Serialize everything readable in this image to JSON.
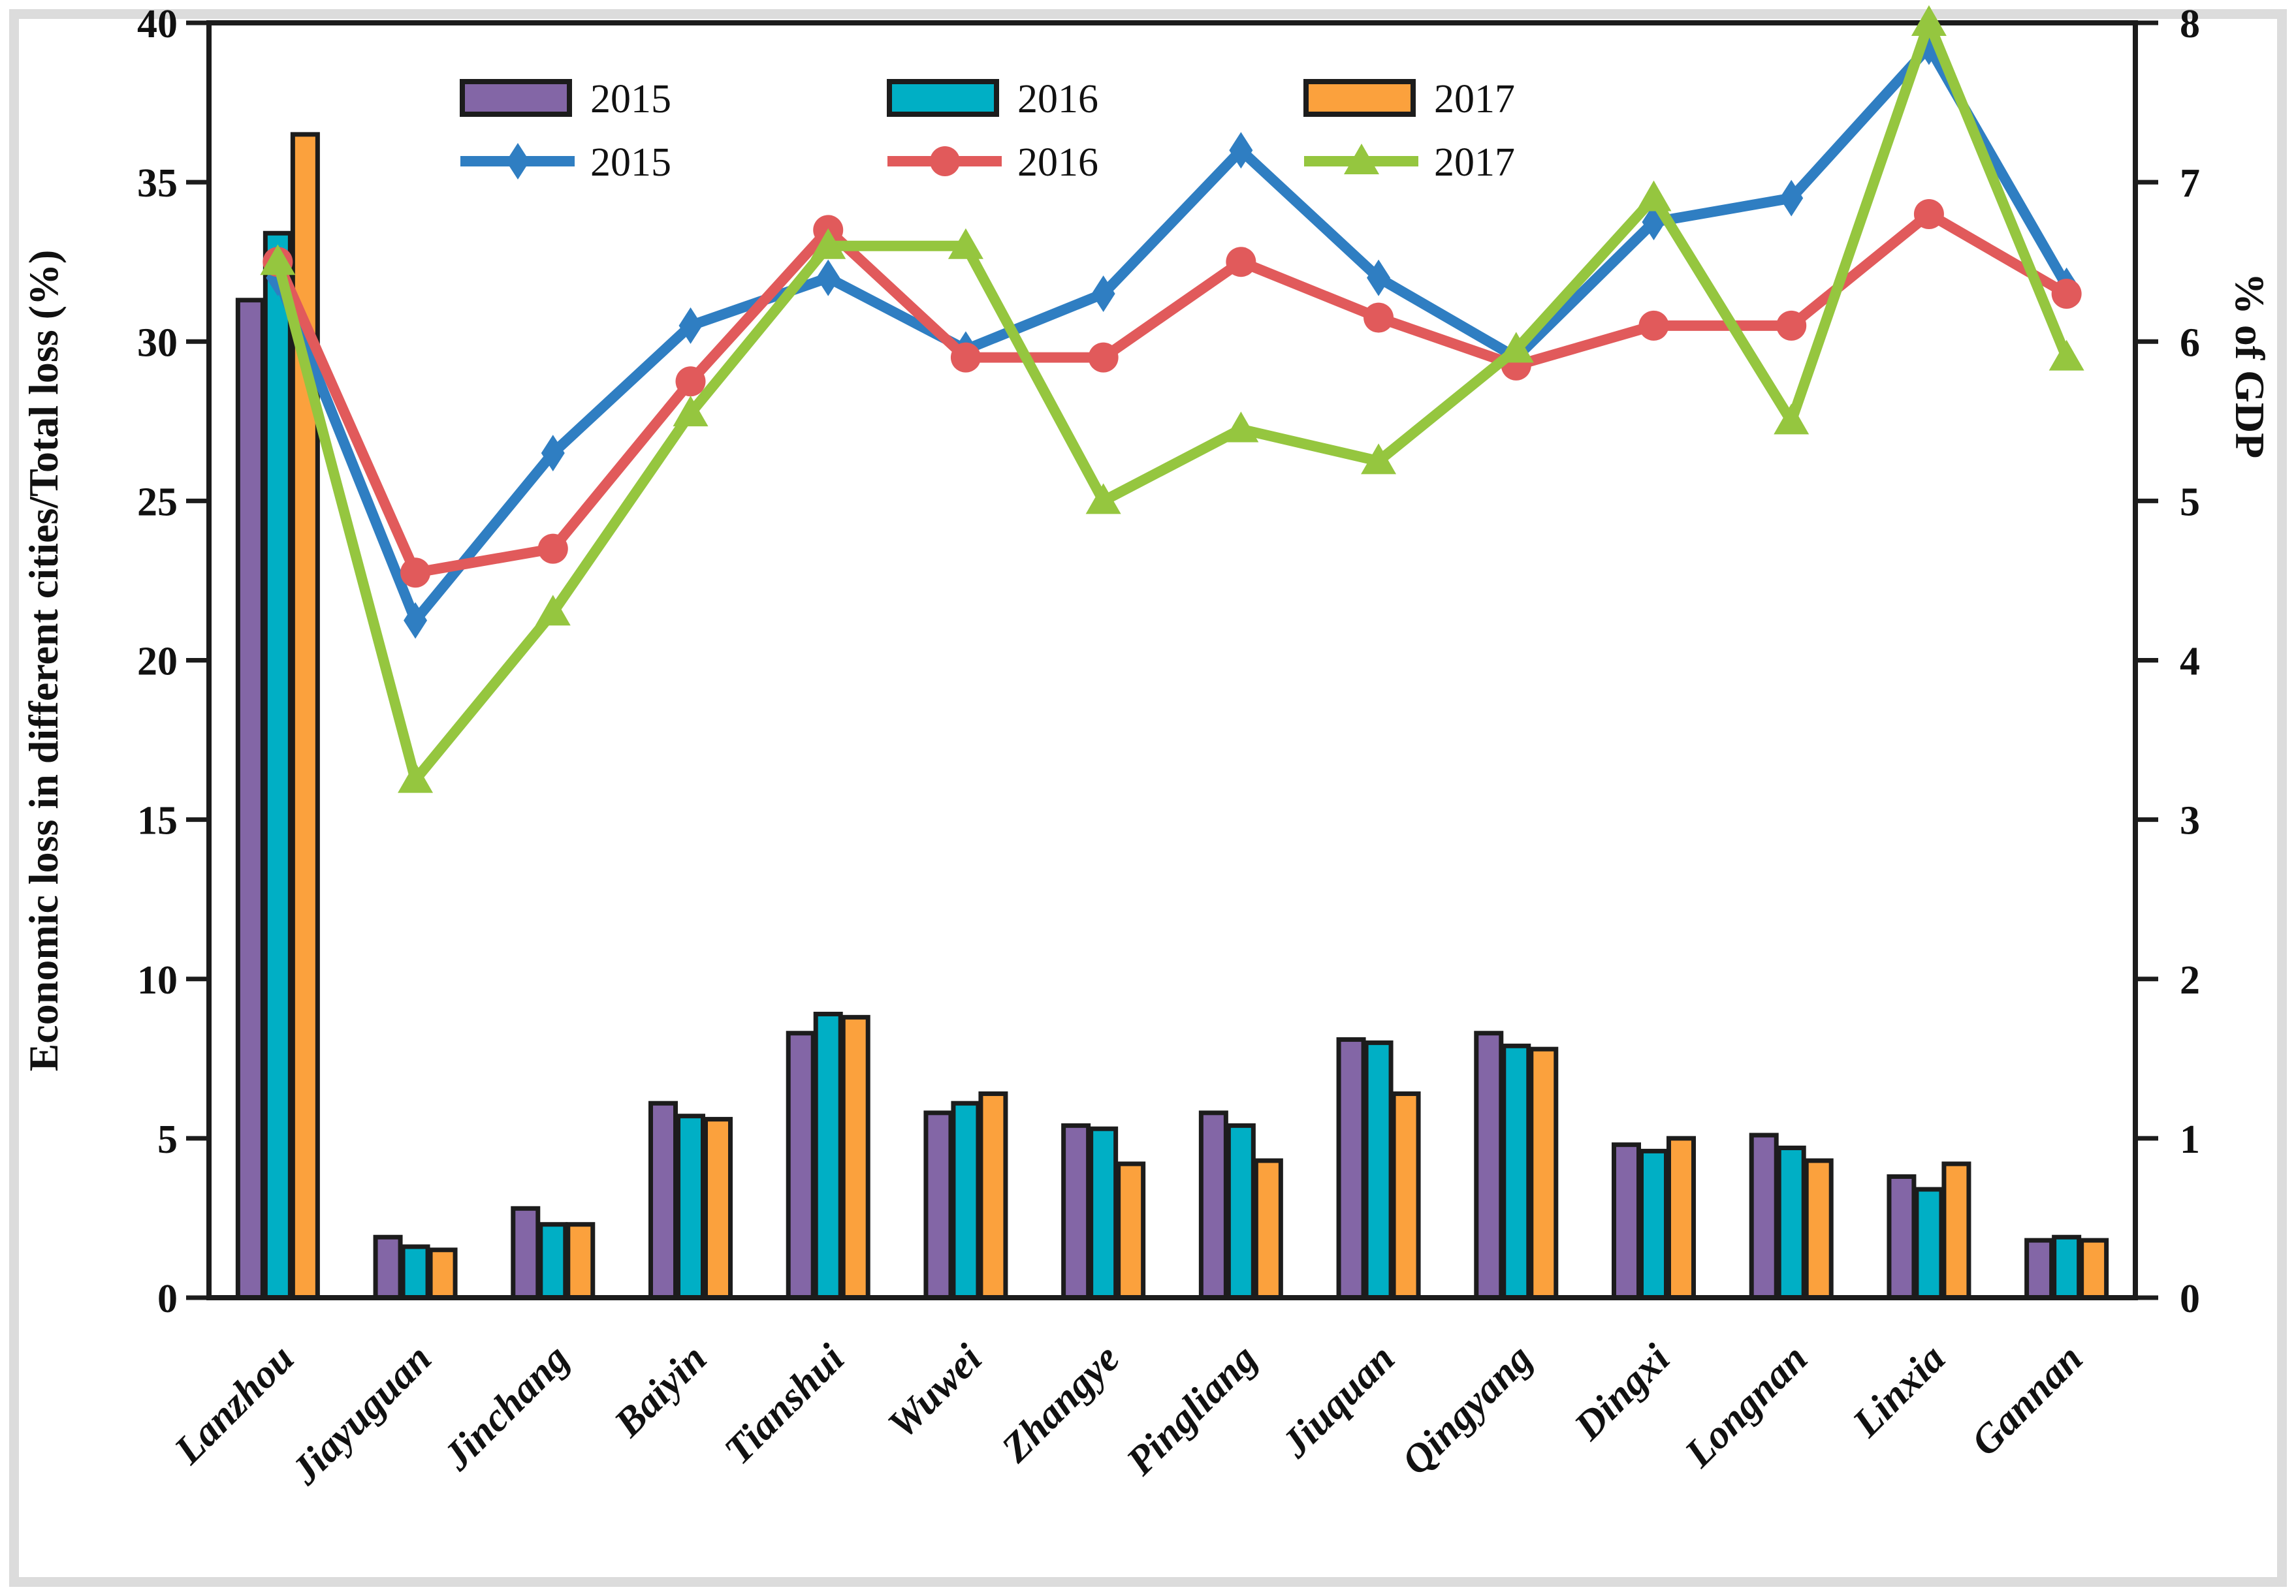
{
  "page": {
    "background": "#ffffff",
    "frame_color": "#dcdcdc",
    "axis_line_color": "#1c1c1c"
  },
  "chart_data": {
    "type": "bar+line combo",
    "title": "",
    "grid": false,
    "legend_position": "top-inside, two rows (bars row, lines row)",
    "categories": [
      "Lanzhou",
      "Jiayuguan",
      "Jinchang",
      "Baiyin",
      "Tianshui",
      "Wuwei",
      "Zhangye",
      "Pingliang",
      "Jiuquan",
      "Qingyang",
      "Dingxi",
      "Longnan",
      "Linxia",
      "Gannan"
    ],
    "left_axis": {
      "label": "Economic loss in different cities/Total loss (%)",
      "min": 0,
      "max": 40,
      "step": 5,
      "ticks": [
        0,
        5,
        10,
        15,
        20,
        25,
        30,
        35,
        40
      ]
    },
    "right_axis": {
      "label": "% of GDP",
      "min": 0,
      "max": 8,
      "step": 1,
      "ticks": [
        0,
        1,
        2,
        3,
        4,
        5,
        6,
        7,
        8
      ]
    },
    "bar_series": [
      {
        "name": "2015",
        "color": "#8366a6",
        "values": [
          31.3,
          1.9,
          2.8,
          6.1,
          8.3,
          5.8,
          5.4,
          5.8,
          8.1,
          8.3,
          4.8,
          5.1,
          3.8,
          1.8
        ]
      },
      {
        "name": "2016",
        "color": "#00afc5",
        "values": [
          33.4,
          1.6,
          2.3,
          5.7,
          8.9,
          6.1,
          5.3,
          5.4,
          8.0,
          7.9,
          4.6,
          4.7,
          3.4,
          1.9
        ]
      },
      {
        "name": "2017",
        "color": "#fba13d",
        "values": [
          36.5,
          1.5,
          2.3,
          5.6,
          8.8,
          6.4,
          4.2,
          4.3,
          6.4,
          7.8,
          5.0,
          4.3,
          4.2,
          1.8
        ]
      }
    ],
    "line_series": [
      {
        "name": "2015",
        "color": "#2f7ec2",
        "marker": "diamond",
        "values": [
          6.4,
          4.25,
          5.3,
          6.1,
          6.4,
          5.95,
          6.3,
          7.2,
          6.4,
          5.9,
          6.75,
          6.9,
          7.85,
          6.35
        ]
      },
      {
        "name": "2016",
        "color": "#e15a5b",
        "marker": "circle",
        "values": [
          6.5,
          4.55,
          4.7,
          5.75,
          6.7,
          5.9,
          5.9,
          6.5,
          6.15,
          5.85,
          6.1,
          6.1,
          6.8,
          6.3
        ]
      },
      {
        "name": "2017",
        "color": "#95c63f",
        "marker": "triangle",
        "values": [
          6.5,
          3.25,
          4.3,
          5.55,
          6.6,
          6.6,
          5.0,
          5.45,
          5.25,
          5.95,
          6.9,
          5.5,
          8.0,
          5.9
        ]
      }
    ]
  }
}
